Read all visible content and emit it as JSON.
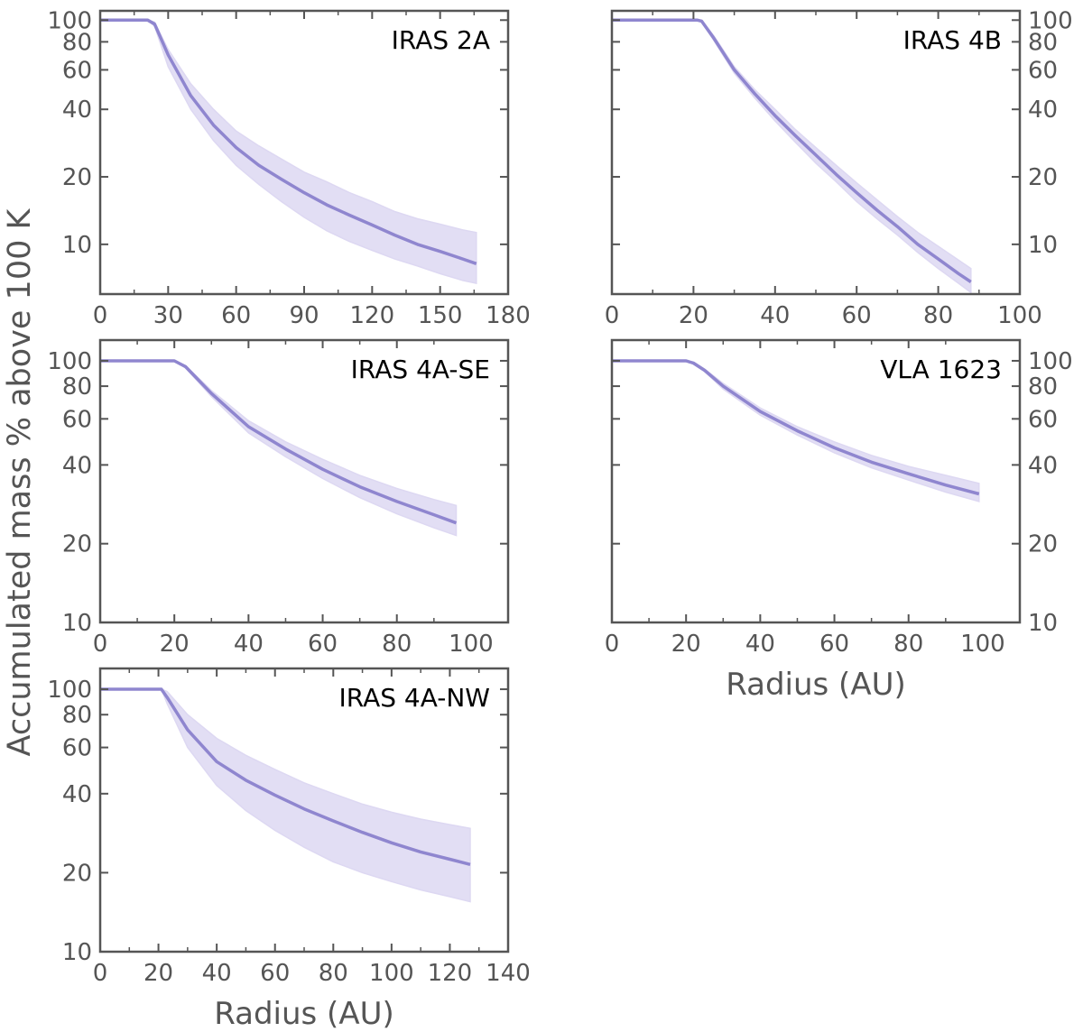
{
  "figure": {
    "ylabel": "Accumulated mass % above 100 K",
    "xlabel": "Radius (AU)"
  },
  "colors": {
    "line": "#8f86cf",
    "band": "#ddd8f2",
    "axes": "#555555",
    "tick_label": "#555555",
    "title": "#000000"
  },
  "chart_data": [
    {
      "type": "line",
      "title": "IRAS 2A",
      "xlabel": "",
      "ylabel": "Accumulated mass % above 100 K",
      "yscale": "log",
      "xlim": [
        0,
        180
      ],
      "ylim": [
        6,
        110
      ],
      "xticks": [
        0,
        30,
        60,
        90,
        120,
        150,
        180
      ],
      "yticks": [
        10,
        20,
        40,
        60,
        80,
        100
      ],
      "ytick_side": "left",
      "show_xlabel": false,
      "series": [
        {
          "name": "median",
          "x": [
            0,
            21,
            24,
            30,
            40,
            50,
            60,
            70,
            80,
            90,
            100,
            110,
            120,
            130,
            140,
            150,
            160,
            166
          ],
          "y": [
            100,
            100,
            96,
            70,
            46,
            34,
            27,
            22.5,
            19.5,
            17,
            15,
            13.5,
            12.2,
            11,
            10,
            9.3,
            8.6,
            8.2
          ]
        },
        {
          "name": "upper",
          "x": [
            0,
            21,
            24,
            30,
            40,
            50,
            60,
            70,
            80,
            90,
            100,
            110,
            120,
            130,
            140,
            150,
            160,
            166
          ],
          "y": [
            100,
            100,
            98,
            74,
            52,
            40,
            32,
            27.5,
            24,
            21,
            19,
            17,
            15.5,
            14,
            13,
            12.3,
            11.6,
            11.3
          ]
        },
        {
          "name": "lower",
          "x": [
            0,
            21,
            24,
            30,
            40,
            50,
            60,
            70,
            80,
            90,
            100,
            110,
            120,
            130,
            140,
            150,
            160,
            166
          ],
          "y": [
            100,
            100,
            94,
            62,
            40,
            29,
            22.5,
            18.5,
            15.5,
            13.2,
            11.5,
            10.3,
            9.4,
            8.6,
            8,
            7.4,
            6.9,
            6.7
          ]
        }
      ]
    },
    {
      "type": "line",
      "title": "IRAS 4B",
      "xlabel": "",
      "ylabel": "",
      "yscale": "log",
      "xlim": [
        0,
        100
      ],
      "ylim": [
        6,
        110
      ],
      "xticks": [
        0,
        20,
        40,
        60,
        80,
        100
      ],
      "yticks": [
        10,
        20,
        40,
        60,
        80,
        100
      ],
      "ytick_side": "right",
      "show_xlabel": false,
      "series": [
        {
          "name": "median",
          "x": [
            0,
            21,
            22,
            25,
            30,
            35,
            40,
            45,
            50,
            55,
            60,
            65,
            70,
            75,
            80,
            85,
            88
          ],
          "y": [
            100,
            100,
            99,
            83,
            60,
            47,
            37.5,
            30.5,
            25,
            20.5,
            17,
            14.2,
            12,
            10,
            8.6,
            7.4,
            6.8
          ]
        },
        {
          "name": "upper",
          "x": [
            0,
            21,
            22,
            25,
            30,
            35,
            40,
            45,
            50,
            55,
            60,
            65,
            70,
            75,
            80,
            85,
            88
          ],
          "y": [
            100,
            100,
            100,
            85,
            62,
            49,
            40,
            32.5,
            27,
            22.5,
            18.8,
            15.8,
            13.3,
            11.3,
            9.8,
            8.5,
            7.8
          ]
        },
        {
          "name": "lower",
          "x": [
            0,
            21,
            22,
            25,
            30,
            35,
            40,
            45,
            50,
            55,
            60,
            65,
            70,
            75,
            80,
            85,
            88
          ],
          "y": [
            100,
            100,
            98,
            81,
            58,
            45,
            35.5,
            28.5,
            23,
            19,
            15.5,
            13,
            11,
            9.2,
            7.8,
            6.7,
            6.1
          ]
        }
      ]
    },
    {
      "type": "line",
      "title": "IRAS 4A-SE",
      "xlabel": "",
      "ylabel": "",
      "yscale": "log",
      "xlim": [
        0,
        110
      ],
      "ylim": [
        10,
        120
      ],
      "xticks": [
        0,
        20,
        40,
        60,
        80,
        100
      ],
      "yticks": [
        10,
        20,
        40,
        60,
        80,
        100
      ],
      "ytick_side": "left",
      "show_xlabel": false,
      "series": [
        {
          "name": "median",
          "x": [
            0,
            20,
            23,
            30,
            40,
            50,
            60,
            70,
            80,
            90,
            96
          ],
          "y": [
            100,
            100,
            95,
            75,
            56,
            46,
            38.5,
            33,
            29,
            25.8,
            24
          ]
        },
        {
          "name": "upper",
          "x": [
            0,
            20,
            23,
            30,
            40,
            50,
            60,
            70,
            80,
            90,
            96
          ],
          "y": [
            100,
            100,
            96,
            77,
            59,
            49,
            42,
            36.5,
            32.5,
            29.5,
            28
          ]
        },
        {
          "name": "lower",
          "x": [
            0,
            20,
            23,
            30,
            40,
            50,
            60,
            70,
            80,
            90,
            96
          ],
          "y": [
            100,
            100,
            94,
            73,
            53,
            43,
            35.5,
            30,
            26,
            23,
            21.5
          ]
        }
      ]
    },
    {
      "type": "line",
      "title": "VLA 1623",
      "xlabel": "Radius (AU)",
      "ylabel": "",
      "yscale": "log",
      "xlim": [
        0,
        110
      ],
      "ylim": [
        10,
        120
      ],
      "xticks": [
        0,
        20,
        40,
        60,
        80,
        100
      ],
      "yticks": [
        10,
        20,
        40,
        60,
        80,
        100
      ],
      "ytick_side": "right",
      "show_xlabel": true,
      "series": [
        {
          "name": "median",
          "x": [
            0,
            20,
            22,
            25,
            30,
            40,
            50,
            60,
            70,
            80,
            90,
            99
          ],
          "y": [
            100,
            100,
            98,
            92,
            80,
            64,
            54,
            46.5,
            41,
            37,
            33.5,
            31
          ]
        },
        {
          "name": "upper",
          "x": [
            0,
            20,
            22,
            25,
            30,
            40,
            50,
            60,
            70,
            80,
            90,
            99
          ],
          "y": [
            100,
            100,
            99,
            93,
            82,
            66,
            56,
            49,
            43.5,
            39.5,
            36.5,
            34
          ]
        },
        {
          "name": "lower",
          "x": [
            0,
            20,
            22,
            25,
            30,
            40,
            50,
            60,
            70,
            80,
            90,
            99
          ],
          "y": [
            100,
            100,
            97,
            91,
            78,
            62,
            52,
            44.5,
            39,
            35,
            31.5,
            29
          ]
        }
      ]
    },
    {
      "type": "line",
      "title": "IRAS 4A-NW",
      "xlabel": "Radius (AU)",
      "ylabel": "",
      "yscale": "log",
      "xlim": [
        0,
        140
      ],
      "ylim": [
        10,
        120
      ],
      "xticks": [
        0,
        20,
        40,
        60,
        80,
        100,
        120,
        140
      ],
      "yticks": [
        10,
        20,
        40,
        60,
        80,
        100
      ],
      "ytick_side": "left",
      "show_xlabel": true,
      "series": [
        {
          "name": "median",
          "x": [
            0,
            21,
            23,
            30,
            40,
            50,
            60,
            70,
            80,
            90,
            100,
            110,
            120,
            127
          ],
          "y": [
            100,
            100,
            93,
            70,
            53,
            45,
            39.5,
            35,
            31.5,
            28.5,
            26,
            24,
            22.5,
            21.5
          ]
        },
        {
          "name": "upper",
          "x": [
            0,
            21,
            23,
            30,
            40,
            50,
            60,
            70,
            80,
            90,
            100,
            110,
            120,
            127
          ],
          "y": [
            100,
            100,
            98,
            80,
            65,
            56,
            49.5,
            44,
            40,
            36.5,
            34,
            32,
            30.5,
            29.5
          ]
        },
        {
          "name": "lower",
          "x": [
            0,
            21,
            23,
            30,
            40,
            50,
            60,
            70,
            80,
            90,
            100,
            110,
            120,
            127
          ],
          "y": [
            100,
            100,
            88,
            60,
            43,
            34.5,
            29,
            25,
            22,
            20,
            18.5,
            17.2,
            16.2,
            15.5
          ]
        }
      ]
    }
  ]
}
